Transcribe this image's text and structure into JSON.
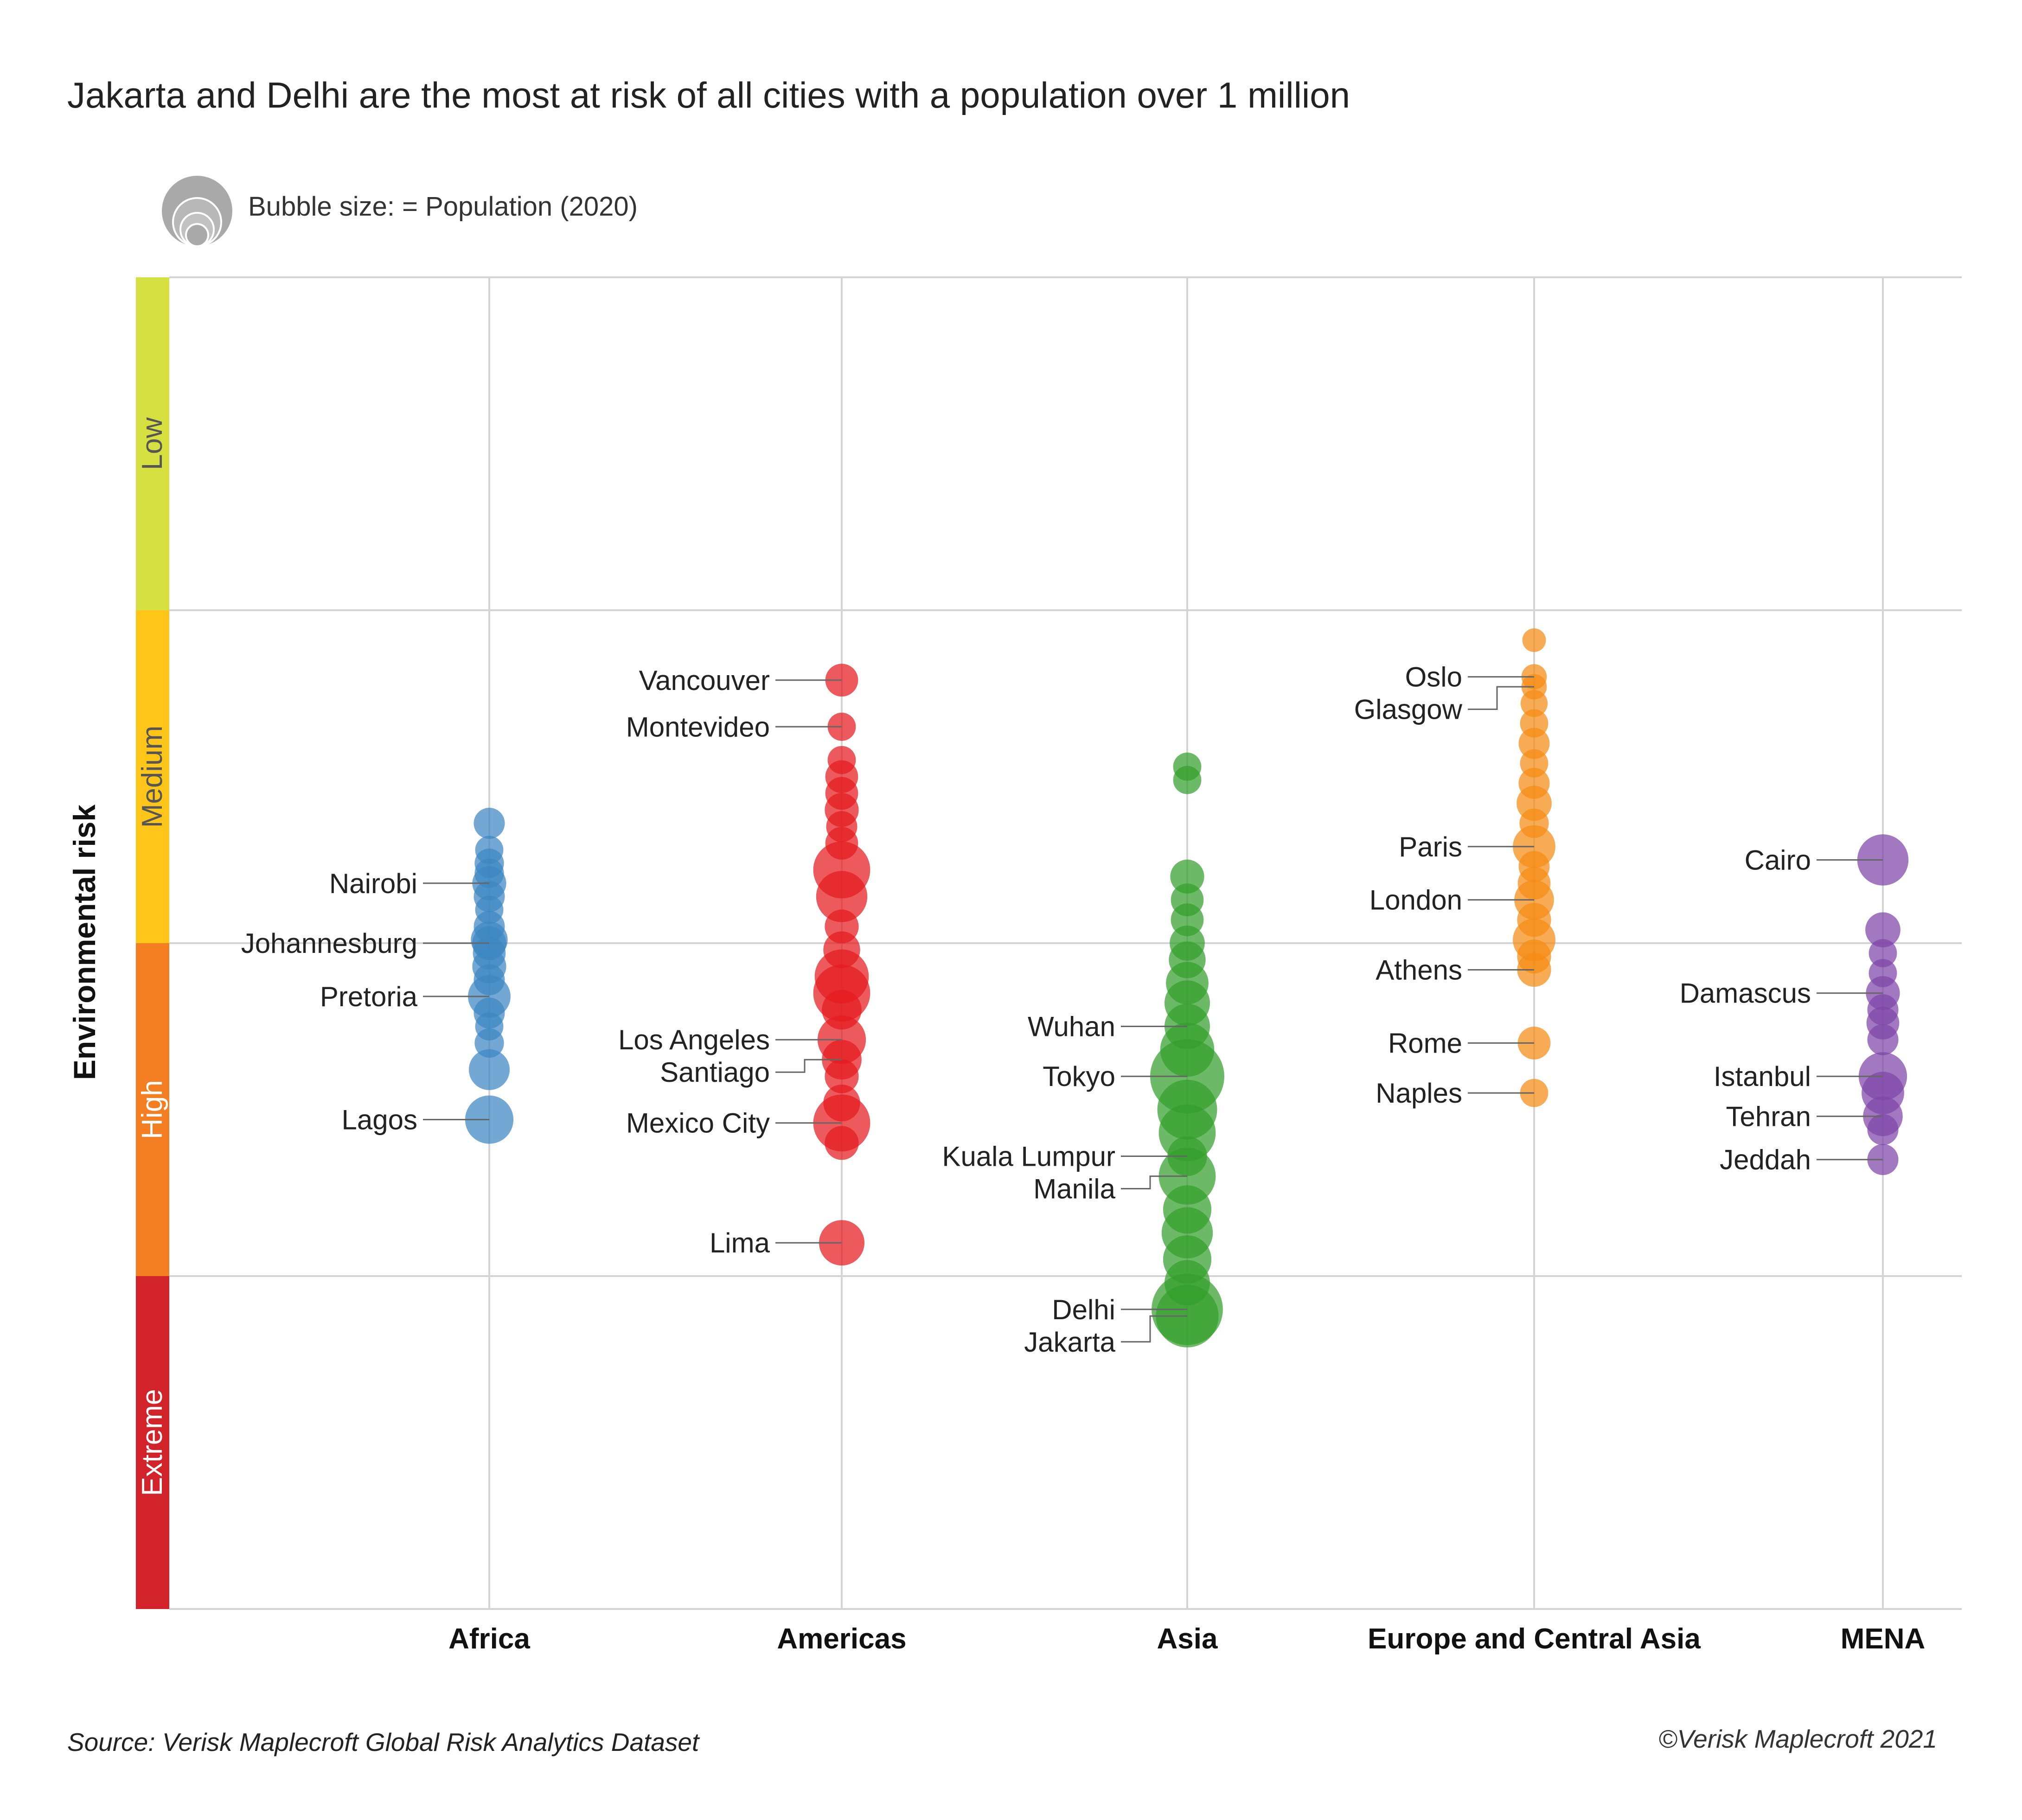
{
  "title": "Jakarta and Delhi are the most at risk of all cities with a population over 1 million",
  "legend": {
    "label": "Bubble size: = Population (2020)"
  },
  "footer": {
    "source": "Source: Verisk Maplecroft Global Risk Analytics Dataset",
    "copyright": "©Verisk Maplecroft 2021"
  },
  "chart_data": {
    "type": "scatter",
    "ylabel": "Environmental risk",
    "y_direction": "risk increases downward",
    "risk_bands": [
      {
        "name": "Low",
        "color": "#d6e040",
        "text_color": "#555555"
      },
      {
        "name": "Medium",
        "color": "#ffc619",
        "text_color": "#555555"
      },
      {
        "name": "High",
        "color": "#f47f22",
        "text_color": "#ffffff"
      },
      {
        "name": "Extreme",
        "color": "#d2232a",
        "text_color": "#ffffff"
      }
    ],
    "categories": [
      "Africa",
      "Americas",
      "Asia",
      "Europe and Central Asia",
      "MENA"
    ],
    "colors": {
      "Africa": "#3b86c2",
      "Americas": "#e41b1f",
      "Asia": "#33a02c",
      "Europe and Central Asia": "#f58a14",
      "MENA": "#7e45a8"
    },
    "labeled_cities": [
      {
        "region": "Africa",
        "name": "Nairobi",
        "risk": 1.82,
        "size": 0.3
      },
      {
        "region": "Africa",
        "name": "Johannesburg",
        "risk": 2.0,
        "size": 0.3
      },
      {
        "region": "Africa",
        "name": "Pretoria",
        "risk": 2.16,
        "size": 0.45
      },
      {
        "region": "Africa",
        "name": "Lagos",
        "risk": 2.53,
        "size": 0.55
      },
      {
        "region": "Americas",
        "name": "Vancouver",
        "risk": 1.21,
        "size": 0.28
      },
      {
        "region": "Americas",
        "name": "Montevideo",
        "risk": 1.35,
        "size": 0.2
      },
      {
        "region": "Americas",
        "name": "Los Angeles",
        "risk": 2.29,
        "size": 0.55
      },
      {
        "region": "Americas",
        "name": "Santiago",
        "risk": 2.35,
        "size": 0.4
      },
      {
        "region": "Americas",
        "name": "Mexico City",
        "risk": 2.54,
        "size": 0.7
      },
      {
        "region": "Americas",
        "name": "Lima",
        "risk": 2.9,
        "size": 0.5
      },
      {
        "region": "Asia",
        "name": "Wuhan",
        "risk": 2.25,
        "size": 0.5
      },
      {
        "region": "Asia",
        "name": "Tokyo",
        "risk": 2.4,
        "size": 1.0
      },
      {
        "region": "Asia",
        "name": "Kuala Lumpur",
        "risk": 2.64,
        "size": 0.4
      },
      {
        "region": "Asia",
        "name": "Manila",
        "risk": 2.7,
        "size": 0.7
      },
      {
        "region": "Asia",
        "name": "Delhi",
        "risk": 3.1,
        "size": 0.95
      },
      {
        "region": "Asia",
        "name": "Jakarta",
        "risk": 3.12,
        "size": 0.8
      },
      {
        "region": "Europe and Central Asia",
        "name": "Oslo",
        "risk": 1.2,
        "size": 0.15
      },
      {
        "region": "Europe and Central Asia",
        "name": "Glasgow",
        "risk": 1.23,
        "size": 0.15
      },
      {
        "region": "Europe and Central Asia",
        "name": "Paris",
        "risk": 1.71,
        "size": 0.45
      },
      {
        "region": "Europe and Central Asia",
        "name": "London",
        "risk": 1.87,
        "size": 0.4
      },
      {
        "region": "Europe and Central Asia",
        "name": "Athens",
        "risk": 2.08,
        "size": 0.3
      },
      {
        "region": "Europe and Central Asia",
        "name": "Rome",
        "risk": 2.3,
        "size": 0.28
      },
      {
        "region": "Europe and Central Asia",
        "name": "Naples",
        "risk": 2.45,
        "size": 0.2
      },
      {
        "region": "MENA",
        "name": "Cairo",
        "risk": 1.75,
        "size": 0.6
      },
      {
        "region": "MENA",
        "name": "Damascus",
        "risk": 2.15,
        "size": 0.3
      },
      {
        "region": "MENA",
        "name": "Istanbul",
        "risk": 2.4,
        "size": 0.55
      },
      {
        "region": "MENA",
        "name": "Tehran",
        "risk": 2.52,
        "size": 0.4
      },
      {
        "region": "MENA",
        "name": "Jeddah",
        "risk": 2.65,
        "size": 0.25
      }
    ],
    "other_cities": [
      {
        "region": "Africa",
        "risk": 1.64,
        "size": 0.25
      },
      {
        "region": "Africa",
        "risk": 1.72,
        "size": 0.2
      },
      {
        "region": "Africa",
        "risk": 1.76,
        "size": 0.22
      },
      {
        "region": "Africa",
        "risk": 1.79,
        "size": 0.22
      },
      {
        "region": "Africa",
        "risk": 1.86,
        "size": 0.25
      },
      {
        "region": "Africa",
        "risk": 1.9,
        "size": 0.2
      },
      {
        "region": "Africa",
        "risk": 1.95,
        "size": 0.25
      },
      {
        "region": "Africa",
        "risk": 1.99,
        "size": 0.35
      },
      {
        "region": "Africa",
        "risk": 2.03,
        "size": 0.28
      },
      {
        "region": "Africa",
        "risk": 2.07,
        "size": 0.3
      },
      {
        "region": "Africa",
        "risk": 2.11,
        "size": 0.25
      },
      {
        "region": "Africa",
        "risk": 2.21,
        "size": 0.25
      },
      {
        "region": "Africa",
        "risk": 2.25,
        "size": 0.2
      },
      {
        "region": "Africa",
        "risk": 2.3,
        "size": 0.22
      },
      {
        "region": "Africa",
        "risk": 2.38,
        "size": 0.42
      },
      {
        "region": "Americas",
        "risk": 1.45,
        "size": 0.2
      },
      {
        "region": "Americas",
        "risk": 1.5,
        "size": 0.28
      },
      {
        "region": "Americas",
        "risk": 1.55,
        "size": 0.28
      },
      {
        "region": "Americas",
        "risk": 1.6,
        "size": 0.3
      },
      {
        "region": "Americas",
        "risk": 1.65,
        "size": 0.25
      },
      {
        "region": "Americas",
        "risk": 1.7,
        "size": 0.28
      },
      {
        "region": "Americas",
        "risk": 1.78,
        "size": 0.7
      },
      {
        "region": "Americas",
        "risk": 1.86,
        "size": 0.6
      },
      {
        "region": "Americas",
        "risk": 1.95,
        "size": 0.3
      },
      {
        "region": "Americas",
        "risk": 2.02,
        "size": 0.35
      },
      {
        "region": "Americas",
        "risk": 2.1,
        "size": 0.65
      },
      {
        "region": "Americas",
        "risk": 2.15,
        "size": 0.7
      },
      {
        "region": "Americas",
        "risk": 2.2,
        "size": 0.4
      },
      {
        "region": "Americas",
        "risk": 2.4,
        "size": 0.3
      },
      {
        "region": "Americas",
        "risk": 2.48,
        "size": 0.35
      },
      {
        "region": "Americas",
        "risk": 2.6,
        "size": 0.3
      },
      {
        "region": "Asia",
        "risk": 1.47,
        "size": 0.2
      },
      {
        "region": "Asia",
        "risk": 1.51,
        "size": 0.2
      },
      {
        "region": "Asia",
        "risk": 1.8,
        "size": 0.3
      },
      {
        "region": "Asia",
        "risk": 1.87,
        "size": 0.28
      },
      {
        "region": "Asia",
        "risk": 1.93,
        "size": 0.28
      },
      {
        "region": "Asia",
        "risk": 2.0,
        "size": 0.32
      },
      {
        "region": "Asia",
        "risk": 2.05,
        "size": 0.35
      },
      {
        "region": "Asia",
        "risk": 2.12,
        "size": 0.45
      },
      {
        "region": "Asia",
        "risk": 2.18,
        "size": 0.5
      },
      {
        "region": "Asia",
        "risk": 2.32,
        "size": 0.65
      },
      {
        "region": "Asia",
        "risk": 2.5,
        "size": 0.75
      },
      {
        "region": "Asia",
        "risk": 2.57,
        "size": 0.7
      },
      {
        "region": "Asia",
        "risk": 2.8,
        "size": 0.55
      },
      {
        "region": "Asia",
        "risk": 2.87,
        "size": 0.6
      },
      {
        "region": "Asia",
        "risk": 2.95,
        "size": 0.55
      },
      {
        "region": "Asia",
        "risk": 3.02,
        "size": 0.5
      },
      {
        "region": "Europe and Central Asia",
        "risk": 1.09,
        "size": 0.12
      },
      {
        "region": "Europe and Central Asia",
        "risk": 1.28,
        "size": 0.18
      },
      {
        "region": "Europe and Central Asia",
        "risk": 1.34,
        "size": 0.2
      },
      {
        "region": "Europe and Central Asia",
        "risk": 1.4,
        "size": 0.25
      },
      {
        "region": "Europe and Central Asia",
        "risk": 1.46,
        "size": 0.2
      },
      {
        "region": "Europe and Central Asia",
        "risk": 1.52,
        "size": 0.25
      },
      {
        "region": "Europe and Central Asia",
        "risk": 1.58,
        "size": 0.32
      },
      {
        "region": "Europe and Central Asia",
        "risk": 1.64,
        "size": 0.22
      },
      {
        "region": "Europe and Central Asia",
        "risk": 1.77,
        "size": 0.25
      },
      {
        "region": "Europe and Central Asia",
        "risk": 1.82,
        "size": 0.28
      },
      {
        "region": "Europe and Central Asia",
        "risk": 1.93,
        "size": 0.3
      },
      {
        "region": "Europe and Central Asia",
        "risk": 1.99,
        "size": 0.45
      },
      {
        "region": "Europe and Central Asia",
        "risk": 2.04,
        "size": 0.3
      },
      {
        "region": "MENA",
        "risk": 1.96,
        "size": 0.32
      },
      {
        "region": "MENA",
        "risk": 2.03,
        "size": 0.2
      },
      {
        "region": "MENA",
        "risk": 2.09,
        "size": 0.2
      },
      {
        "region": "MENA",
        "risk": 2.2,
        "size": 0.25
      },
      {
        "region": "MENA",
        "risk": 2.24,
        "size": 0.28
      },
      {
        "region": "MENA",
        "risk": 2.29,
        "size": 0.25
      },
      {
        "region": "MENA",
        "risk": 2.45,
        "size": 0.45
      },
      {
        "region": "MENA",
        "risk": 2.56,
        "size": 0.25
      }
    ],
    "grid": true
  }
}
